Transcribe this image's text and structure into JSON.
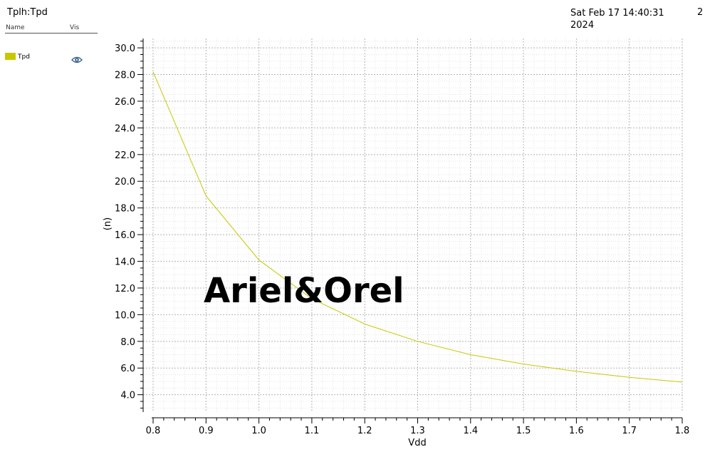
{
  "header": {
    "title": "Tplh:Tpd",
    "timestamp_line1": "Sat Feb 17 14:40:31",
    "timestamp_line2": "2024",
    "page_number": "2"
  },
  "legend": {
    "name_header": "Name",
    "vis_header": "Vis",
    "items": [
      {
        "label": "Tpd",
        "color": "#c8c800",
        "icon": "eye-icon"
      }
    ]
  },
  "watermark": "Ariel&Orel",
  "chart_data": {
    "type": "line",
    "xlabel": "Vdd",
    "ylabel": "(n)",
    "xlim": [
      0.8,
      1.8
    ],
    "ylim": [
      2.7,
      30.7
    ],
    "x_ticks": [
      0.8,
      0.9,
      1.0,
      1.1,
      1.2,
      1.3,
      1.4,
      1.5,
      1.6,
      1.7,
      1.8
    ],
    "x_tick_labels": [
      "0.8",
      "0.9",
      "1.0",
      "1.1",
      "1.2",
      "1.3",
      "1.4",
      "1.5",
      "1.6",
      "1.7",
      "1.8"
    ],
    "y_ticks": [
      4,
      6,
      8,
      10,
      12,
      14,
      16,
      18,
      20,
      22,
      24,
      26,
      28,
      30
    ],
    "y_tick_labels": [
      "4.0",
      "6.0",
      "8.0",
      "10.0",
      "12.0",
      "14.0",
      "16.0",
      "18.0",
      "20.0",
      "22.0",
      "24.0",
      "26.0",
      "28.0",
      "30.0"
    ],
    "grid": true,
    "series": [
      {
        "name": "Tpd",
        "color": "#c8c800",
        "x": [
          0.8,
          0.9,
          1.0,
          1.1,
          1.2,
          1.3,
          1.4,
          1.5,
          1.6,
          1.7,
          1.8
        ],
        "y": [
          28.2,
          18.9,
          14.1,
          11.2,
          9.3,
          8.0,
          7.0,
          6.3,
          5.75,
          5.3,
          4.95
        ]
      }
    ]
  }
}
